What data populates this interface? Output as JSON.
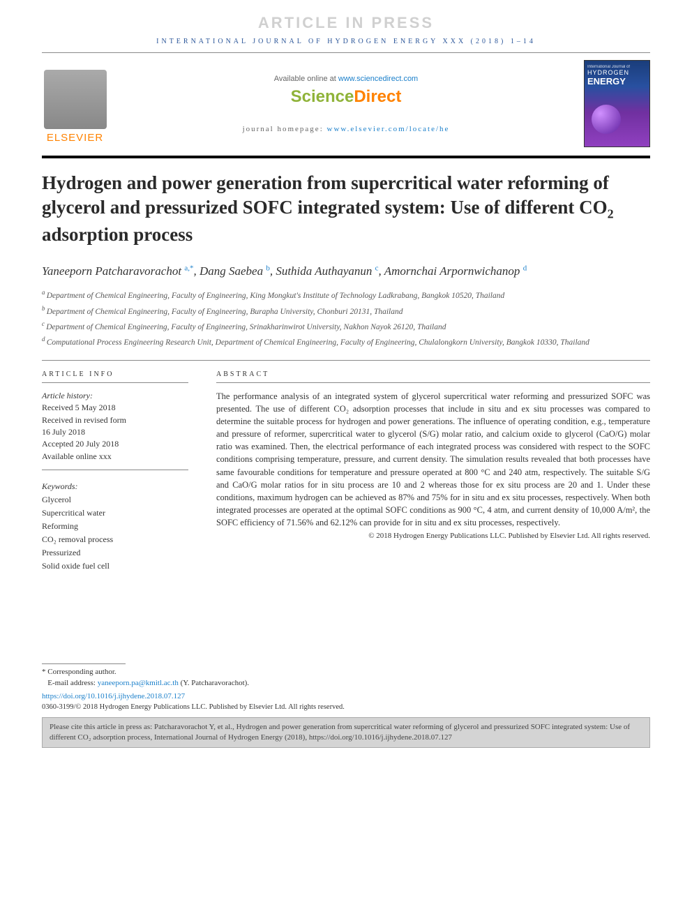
{
  "header": {
    "article_in_press": "ARTICLE IN PRESS",
    "journal_line": "INTERNATIONAL JOURNAL OF HYDROGEN ENERGY XXX (2018) 1–14",
    "available_online": "Available online at ",
    "sciencedirect_url": "www.sciencedirect.com",
    "sd_logo_sci": "Science",
    "sd_logo_direct": "Direct",
    "homepage_label": "journal homepage: ",
    "homepage_url": "www.elsevier.com/locate/he",
    "elsevier_text": "ELSEVIER",
    "cover_intl": "International Journal of",
    "cover_hydrogen": "HYDROGEN",
    "cover_energy": "ENERGY"
  },
  "title_parts": {
    "pre": "Hydrogen and power generation from supercritical water reforming of glycerol and pressurized SOFC integrated system: Use of different CO",
    "sub": "2",
    "post": " adsorption process"
  },
  "authors": [
    {
      "name": "Yaneeporn Patcharavorachot",
      "sup": "a,*"
    },
    {
      "name": "Dang Saebea",
      "sup": "b"
    },
    {
      "name": "Suthida Authayanun",
      "sup": "c"
    },
    {
      "name": "Amornchai Arpornwichanop",
      "sup": "d"
    }
  ],
  "affiliations": [
    {
      "sup": "a",
      "text": "Department of Chemical Engineering, Faculty of Engineering, King Mongkut's Institute of Technology Ladkrabang, Bangkok 10520, Thailand"
    },
    {
      "sup": "b",
      "text": "Department of Chemical Engineering, Faculty of Engineering, Burapha University, Chonburi 20131, Thailand"
    },
    {
      "sup": "c",
      "text": "Department of Chemical Engineering, Faculty of Engineering, Srinakharinwirot University, Nakhon Nayok 26120, Thailand"
    },
    {
      "sup": "d",
      "text": "Computational Process Engineering Research Unit, Department of Chemical Engineering, Faculty of Engineering, Chulalongkorn University, Bangkok 10330, Thailand"
    }
  ],
  "article_info": {
    "label": "ARTICLE INFO",
    "history_label": "Article history:",
    "received": "Received 5 May 2018",
    "revised1": "Received in revised form",
    "revised2": "16 July 2018",
    "accepted": "Accepted 20 July 2018",
    "online": "Available online xxx",
    "keywords_label": "Keywords:",
    "keywords": [
      "Glycerol",
      "Supercritical water",
      "Reforming",
      "CO₂ removal process",
      "Pressurized",
      "Solid oxide fuel cell"
    ]
  },
  "abstract": {
    "label": "ABSTRACT",
    "text": "The performance analysis of an integrated system of glycerol supercritical water reforming and pressurized SOFC was presented. The use of different CO₂ adsorption processes that include in situ and ex situ processes was compared to determine the suitable process for hydrogen and power generations. The influence of operating condition, e.g., temperature and pressure of reformer, supercritical water to glycerol (S/G) molar ratio, and calcium oxide to glycerol (CaO/G) molar ratio was examined. Then, the electrical performance of each integrated process was considered with respect to the SOFC conditions comprising temperature, pressure, and current density. The simulation results revealed that both processes have same favourable conditions for temperature and pressure operated at 800 °C and 240 atm, respectively. The suitable S/G and CaO/G molar ratios for in situ process are 10 and 2 whereas those for ex situ process are 20 and 1. Under these conditions, maximum hydrogen can be achieved as 87% and 75% for in situ and ex situ processes, respectively. When both integrated processes are operated at the optimal SOFC conditions as 900 °C, 4 atm, and current density of 10,000 A/m², the SOFC efficiency of 71.56% and 62.12% can provide for in situ and ex situ processes, respectively.",
    "copyright": "© 2018 Hydrogen Energy Publications LLC. Published by Elsevier Ltd. All rights reserved."
  },
  "footer": {
    "corr": "* Corresponding author.",
    "email_label": "E-mail address: ",
    "email": "yaneeporn.pa@kmitl.ac.th",
    "email_suffix": " (Y. Patcharavorachot).",
    "doi": "https://doi.org/10.1016/j.ijhydene.2018.07.127",
    "pub": "0360-3199/© 2018 Hydrogen Energy Publications LLC. Published by Elsevier Ltd. All rights reserved.",
    "cite": "Please cite this article in press as: Patcharavorachot Y, et al., Hydrogen and power generation from supercritical water reforming of glycerol and pressurized SOFC integrated system: Use of different CO₂ adsorption process, International Journal of Hydrogen Energy (2018), https://doi.org/10.1016/j.ijhydene.2018.07.127"
  },
  "colors": {
    "link": "#1a7fca",
    "elsevier_orange": "#ff8200",
    "sd_green": "#8fb339",
    "header_blue": "#2a5599"
  }
}
